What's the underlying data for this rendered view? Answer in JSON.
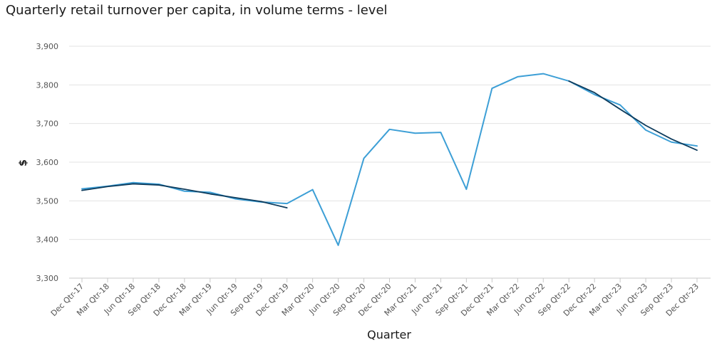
{
  "chart_data": {
    "type": "line",
    "title": "Quarterly retail turnover per capita, in volume terms - level",
    "xlabel": "Quarter",
    "ylabel": "$",
    "ylim": [
      3300,
      3900
    ],
    "yticks": [
      3300,
      3400,
      3500,
      3600,
      3700,
      3800,
      3900
    ],
    "ytick_labels": [
      "3,300",
      "3,400",
      "3,500",
      "3,600",
      "3,700",
      "3,800",
      "3,900"
    ],
    "grid": true,
    "legend": "none",
    "categories": [
      "Dec Qtr-17",
      "Mar Qtr-18",
      "Jun Qtr-18",
      "Sep Qtr-18",
      "Dec Qtr-18",
      "Mar Qtr-19",
      "Jun Qtr-19",
      "Sep Qtr-19",
      "Dec Qtr-19",
      "Mar Qtr-20",
      "Jun Qtr-20",
      "Sep Qtr-20",
      "Dec Qtr-20",
      "Mar Qtr-21",
      "Jun Qtr-21",
      "Sep Qtr-21",
      "Dec Qtr-21",
      "Mar Qtr-22",
      "Jun Qtr-22",
      "Sep Qtr-22",
      "Dec Qtr-22",
      "Mar Qtr-23",
      "Jun Qtr-23",
      "Sep Qtr-23",
      "Dec Qtr-23"
    ],
    "series": [
      {
        "color": "#3d9fd6",
        "values": [
          3531,
          3538,
          3547,
          3543,
          3525,
          3522,
          3505,
          3497,
          3493,
          3529,
          3385,
          3610,
          3685,
          3675,
          3677,
          3530,
          3791,
          3821,
          3829,
          3810,
          3775,
          3748,
          3683,
          3652,
          3642
        ]
      },
      {
        "color": "#0d3b5c",
        "values": [
          3527,
          3537,
          3544,
          3541,
          3530,
          3518,
          3508,
          3498,
          3482,
          null,
          null,
          null,
          null,
          null,
          null,
          null,
          null,
          null,
          null,
          3810,
          3780,
          3737,
          3695,
          3660,
          3631
        ]
      }
    ]
  }
}
